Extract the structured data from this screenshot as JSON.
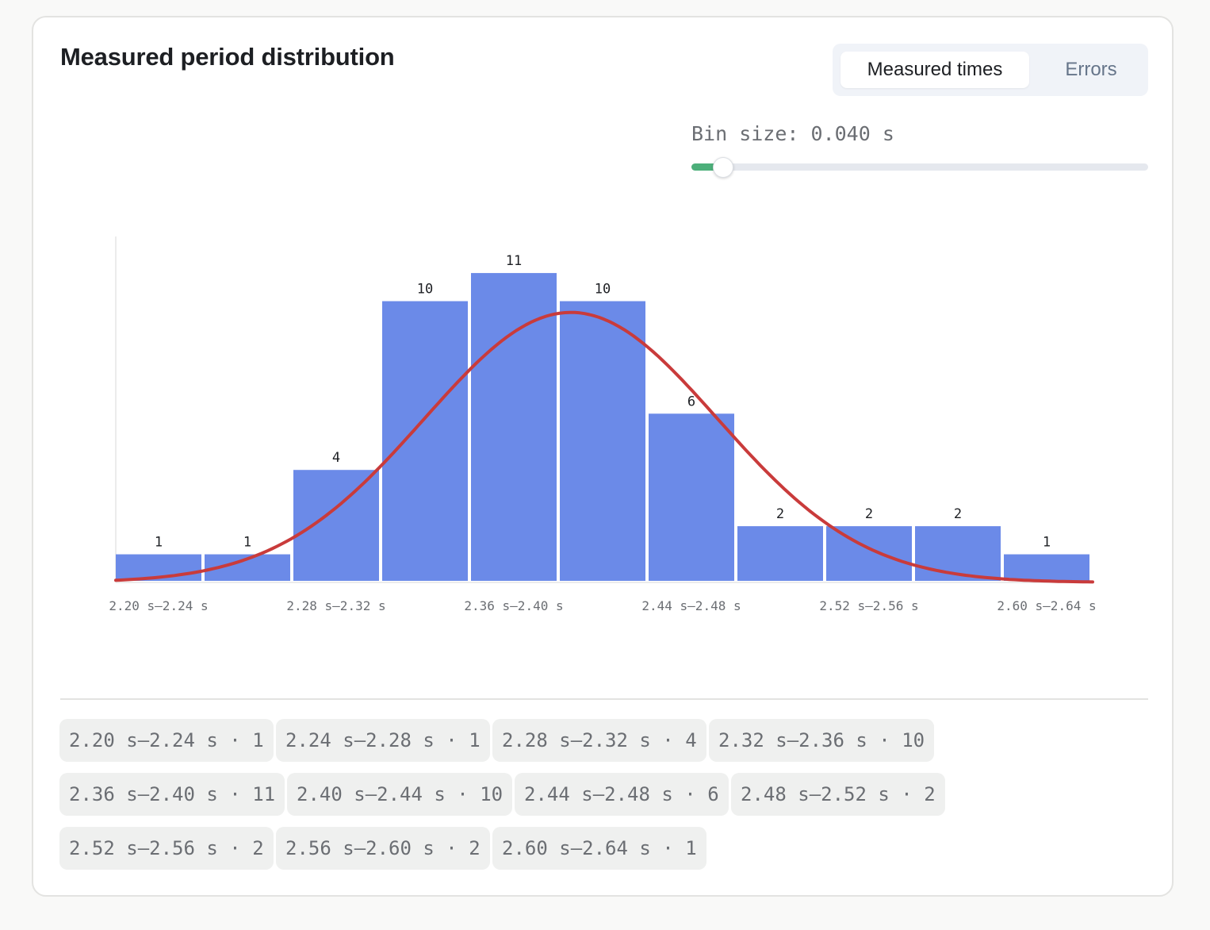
{
  "title": "Measured period distribution",
  "tabs": [
    {
      "label": "Measured times",
      "active": true
    },
    {
      "label": "Errors",
      "active": false
    }
  ],
  "bin_size": {
    "label": "Bin size: 0.040 s",
    "value": 0.04,
    "slider_fraction": 0.07
  },
  "colors": {
    "bar": "#6b8ae8",
    "fit_curve": "#c93b3b",
    "slider_fill": "#4caf7a"
  },
  "chart_data": {
    "type": "bar",
    "categories": [
      "2.20 s–2.24 s",
      "2.24 s–2.28 s",
      "2.28 s–2.32 s",
      "2.32 s–2.36 s",
      "2.36 s–2.40 s",
      "2.40 s–2.44 s",
      "2.44 s–2.48 s",
      "2.48 s–2.52 s",
      "2.52 s–2.56 s",
      "2.56 s–2.60 s",
      "2.60 s–2.64 s"
    ],
    "tick_labels": [
      "2.20 s–2.24 s",
      "2.28 s–2.32 s",
      "2.36 s–2.40 s",
      "2.44 s–2.48 s",
      "2.52 s–2.56 s",
      "2.60 s–2.64 s"
    ],
    "values": [
      1,
      1,
      4,
      10,
      11,
      10,
      6,
      2,
      2,
      2,
      1
    ],
    "ylim": [
      0,
      12.3
    ],
    "fit_curve": {
      "type": "normal",
      "mean": 2.405,
      "std": 0.066,
      "peak_count": 9.6,
      "x_range": [
        2.2,
        2.64
      ]
    },
    "grid": false,
    "legend": "none"
  },
  "chips": [
    {
      "text": "2.20 s–2.24 s · 1"
    },
    {
      "text": "2.24 s–2.28 s · 1"
    },
    {
      "text": "2.28 s–2.32 s · 4"
    },
    {
      "text": "2.32 s–2.36 s · 10"
    },
    {
      "text": "2.36 s–2.40 s · 11"
    },
    {
      "text": "2.40 s–2.44 s · 10"
    },
    {
      "text": "2.44 s–2.48 s · 6"
    },
    {
      "text": "2.48 s–2.52 s · 2"
    },
    {
      "text": "2.52 s–2.56 s · 2"
    },
    {
      "text": "2.56 s–2.60 s · 2"
    },
    {
      "text": "2.60 s–2.64 s · 1"
    }
  ]
}
